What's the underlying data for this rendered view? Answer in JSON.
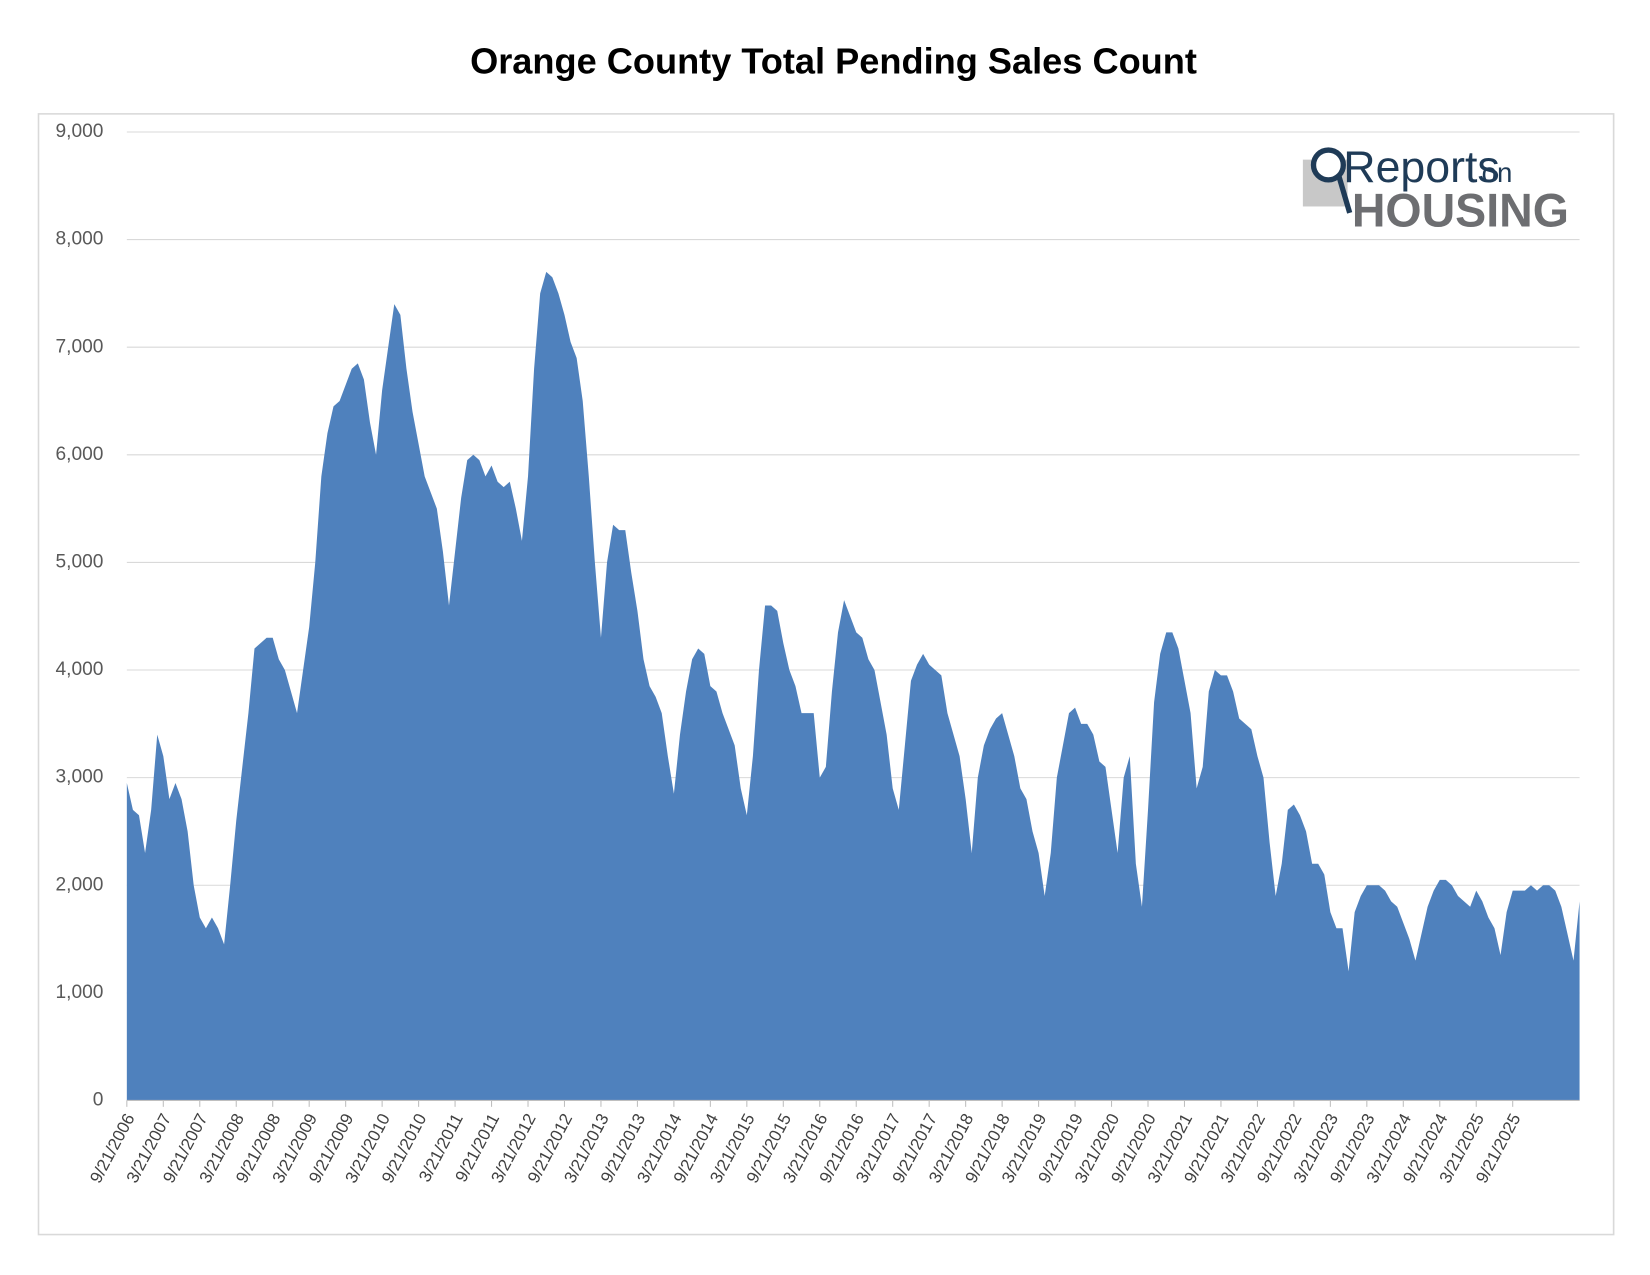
{
  "chart_data": {
    "type": "area",
    "title": "Orange County Total Pending Sales Count",
    "logo": {
      "text": "Reports",
      "small": "on",
      "brand": "HOUSING"
    },
    "color": "#4f81bd",
    "grid": true,
    "ylim": [
      0,
      9000
    ],
    "yticks": [
      0,
      {
        "value": 1000,
        "label": "1,000"
      },
      {
        "value": 2000,
        "label": "2,000"
      },
      {
        "value": 3000,
        "label": "3,000"
      },
      {
        "value": 4000,
        "label": "4,000"
      },
      {
        "value": 5000,
        "label": "5,000"
      },
      {
        "value": 6000,
        "label": "6,000"
      },
      {
        "value": 7000,
        "label": "7,000"
      },
      {
        "value": 8000,
        "label": "8,000"
      },
      {
        "value": 9000,
        "label": "9,000"
      }
    ],
    "categories": [
      "9/21/2006",
      null,
      null,
      null,
      null,
      null,
      "3/21/2007",
      null,
      null,
      null,
      null,
      null,
      "9/21/2007",
      null,
      null,
      null,
      null,
      null,
      "3/21/2008",
      null,
      null,
      null,
      null,
      null,
      "9/21/2008",
      null,
      null,
      null,
      null,
      null,
      "3/21/2009",
      null,
      null,
      null,
      null,
      null,
      "9/21/2009",
      null,
      null,
      null,
      null,
      null,
      "3/21/2010",
      null,
      null,
      null,
      null,
      null,
      "9/21/2010",
      null,
      null,
      null,
      null,
      null,
      "3/21/2011",
      null,
      null,
      null,
      null,
      null,
      "9/21/2011",
      null,
      null,
      null,
      null,
      null,
      "3/21/2012",
      null,
      null,
      null,
      null,
      null,
      "9/21/2012",
      null,
      null,
      null,
      null,
      null,
      "3/21/2013",
      null,
      null,
      null,
      null,
      null,
      "9/21/2013",
      null,
      null,
      null,
      null,
      null,
      "3/21/2014",
      null,
      null,
      null,
      null,
      null,
      "9/21/2014",
      null,
      null,
      null,
      null,
      null,
      "3/21/2015",
      null,
      null,
      null,
      null,
      null,
      "9/21/2015",
      null,
      null,
      null,
      null,
      null,
      "3/21/2016",
      null,
      null,
      null,
      null,
      null,
      "9/21/2016",
      null,
      null,
      null,
      null,
      null,
      "3/21/2017",
      null,
      null,
      null,
      null,
      null,
      "9/21/2017",
      null,
      null,
      null,
      null,
      null,
      "3/21/2018",
      null,
      null,
      null,
      null,
      null,
      "9/21/2018",
      null,
      null,
      null,
      null,
      null,
      "3/21/2019",
      null,
      null,
      null,
      null,
      null,
      "9/21/2019",
      null,
      null,
      null,
      null,
      null,
      "3/21/2020",
      null,
      null,
      null,
      null,
      null,
      "9/21/2020",
      null,
      null,
      null,
      null,
      null,
      "3/21/2021",
      null,
      null,
      null,
      null,
      null,
      "9/21/2021",
      null,
      null,
      null,
      null,
      null,
      "3/21/2022",
      null,
      null,
      null,
      null,
      null,
      "9/21/2022",
      null,
      null,
      null,
      null,
      null,
      "3/21/2023",
      null,
      null,
      null,
      null,
      null,
      "9/21/2023",
      null,
      null,
      null,
      null,
      null,
      "3/21/2024",
      null,
      null,
      null,
      null,
      null,
      "9/21/2024",
      null,
      null,
      null,
      null,
      null,
      "3/21/2025",
      null,
      null,
      null,
      null,
      null,
      "9/21/2025",
      null,
      null,
      null,
      null,
      null,
      null,
      null,
      null,
      null,
      null,
      null
    ],
    "values": [
      2950,
      2700,
      2650,
      2300,
      2700,
      3400,
      3200,
      2800,
      2950,
      2800,
      2500,
      2000,
      1700,
      1600,
      1700,
      1600,
      1450,
      2000,
      2600,
      3100,
      3600,
      4200,
      4250,
      4300,
      4300,
      4100,
      4000,
      3800,
      3600,
      4000,
      4400,
      5000,
      5800,
      6200,
      6450,
      6500,
      6650,
      6800,
      6850,
      6700,
      6300,
      6000,
      6600,
      7000,
      7400,
      7300,
      6800,
      6400,
      6100,
      5800,
      5650,
      5500,
      5100,
      4600,
      5100,
      5600,
      5950,
      6000,
      5950,
      5800,
      5900,
      5750,
      5700,
      5750,
      5500,
      5200,
      5800,
      6800,
      7500,
      7700,
      7650,
      7500,
      7300,
      7050,
      6900,
      6500,
      5800,
      5000,
      4300,
      5000,
      5350,
      5300,
      5300,
      4900,
      4550,
      4100,
      3850,
      3750,
      3600,
      3200,
      2850,
      3400,
      3800,
      4100,
      4200,
      4150,
      3850,
      3800,
      3600,
      3450,
      3300,
      2900,
      2650,
      3200,
      4000,
      4600,
      4600,
      4550,
      4250,
      4000,
      3850,
      3600,
      3600,
      3600,
      3000,
      3100,
      3800,
      4350,
      4650,
      4500,
      4350,
      4300,
      4100,
      4000,
      3700,
      3400,
      2900,
      2700,
      3300,
      3900,
      4050,
      4150,
      4050,
      4000,
      3950,
      3600,
      3400,
      3200,
      2800,
      2300,
      3000,
      3300,
      3450,
      3550,
      3600,
      3400,
      3200,
      2900,
      2800,
      2500,
      2300,
      1900,
      2300,
      3000,
      3300,
      3600,
      3650,
      3500,
      3500,
      3400,
      3150,
      3100,
      2700,
      2300,
      3000,
      3200,
      2200,
      1800,
      2700,
      3700,
      4150,
      4350,
      4350,
      4200,
      3900,
      3600,
      2900,
      3100,
      3800,
      4000,
      3950,
      3950,
      3800,
      3550,
      3500,
      3450,
      3200,
      3000,
      2400,
      1900,
      2200,
      2700,
      2750,
      2650,
      2500,
      2200,
      2200,
      2100,
      1750,
      1600,
      1600,
      1200,
      1750,
      1900,
      2000,
      2000,
      2000,
      1950,
      1850,
      1800,
      1650,
      1500,
      1300,
      1550,
      1800,
      1950,
      2050,
      2050,
      2000,
      1900,
      1850,
      1800,
      1950,
      1850,
      1700,
      1600,
      1350,
      1750,
      1950,
      1950,
      1950,
      2000,
      1950,
      2000,
      2000,
      1950,
      1800,
      1550,
      1300,
      1850
    ]
  }
}
